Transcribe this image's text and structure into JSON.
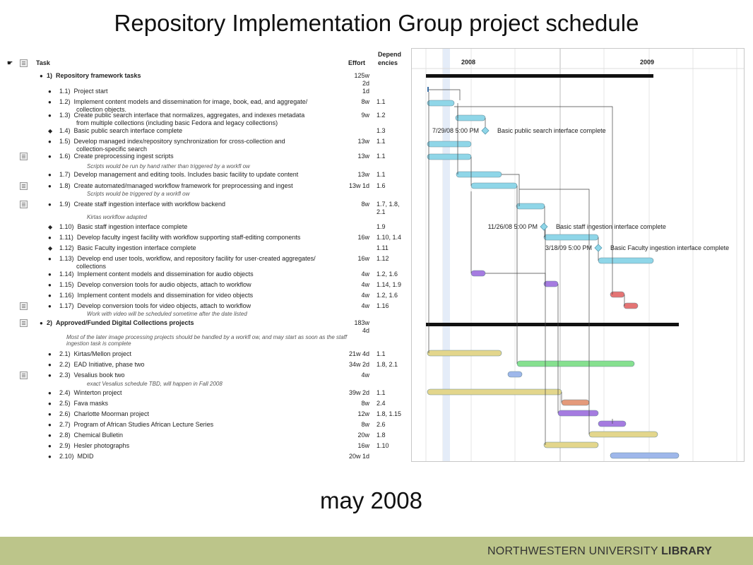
{
  "slide_title": "Repository Implementation Group project schedule",
  "subtitle": "may 2008",
  "footer": {
    "logo_left": "NORTHWESTERN UNIVERSITY",
    "logo_right": "LIBRARY",
    "bg_color": "#bcc58a"
  },
  "columns": {
    "task": "Task",
    "effort": "Effort",
    "deps_line1": "Depend",
    "deps_line2": "encies"
  },
  "years": [
    "2008",
    "2009"
  ],
  "rows": [
    {
      "num": "1)",
      "name": "Repository framework tasks",
      "effort": "125w\n2d",
      "deps": "",
      "bold": true
    },
    {
      "num": "1.1)",
      "name": "Project start",
      "effort": "1d",
      "deps": ""
    },
    {
      "num": "1.2)",
      "name": "Implement content models and dissemination for image, book, ead, and aggregate/",
      "name2": "collection objects.",
      "effort": "8w",
      "deps": "1.1"
    },
    {
      "num": "1.3)",
      "name": "Create public search interface that normalizes, aggregates, and indexes metadata",
      "name2": "from multiple collections (including basic Fedora and legacy collections)",
      "effort": "9w",
      "deps": "1.2"
    },
    {
      "num": "1.4)",
      "name": "Basic public search interface complete",
      "effort": "",
      "deps": "1.3"
    },
    {
      "num": "1.5)",
      "name": "Develop managed index/repository synchronization for cross-collection and",
      "name2": "collection-specific search",
      "effort": "13w",
      "deps": "1.1"
    },
    {
      "num": "1.6)",
      "name": "Create preprocessing ingest scripts",
      "effort": "13w",
      "deps": "1.1",
      "note": "Scripts would be run by hand rather than triggered by a workfl    ow"
    },
    {
      "num": "1.7)",
      "name": "Develop management and editing tools. Includes basic facility to update content",
      "effort": "13w",
      "deps": "1.1"
    },
    {
      "num": "1.8)",
      "name": "Create automated/managed workflow framework for preprocessing and ingest",
      "effort": "13w 1d",
      "deps": "1.6",
      "note": "Scripts would be triggered by a workfl    ow"
    },
    {
      "num": "1.9)",
      "name": "Create staff ingestion interface with workflow backend",
      "effort": "8w",
      "deps": "1.7, 1.8,\n2.1",
      "note": "Kirtas workflow adapted"
    },
    {
      "num": "1.10)",
      "name": "Basic staff ingestion interface complete",
      "effort": "",
      "deps": "1.9"
    },
    {
      "num": "1.11)",
      "name": "Develop faculty ingest facility with workflow supporting staff-editing components",
      "effort": "16w",
      "deps": "1.10, 1.4"
    },
    {
      "num": "1.12)",
      "name": "Basic Faculty ingestion interface complete",
      "effort": "",
      "deps": "1.11"
    },
    {
      "num": "1.13)",
      "name": "Develop end user tools, workflow, and repository facility for user-created aggregates/",
      "name2": "collections",
      "effort": "16w",
      "deps": "1.12"
    },
    {
      "num": "1.14)",
      "name": "Implement content models and dissemination for audio objects",
      "effort": "4w",
      "deps": "1.2, 1.6"
    },
    {
      "num": "1.15)",
      "name": "Develop conversion tools for audio objects, attach to workflow",
      "effort": "4w",
      "deps": "1.14, 1.9"
    },
    {
      "num": "1.16)",
      "name": "Implement content models and dissemination for video objects",
      "effort": "4w",
      "deps": "1.2, 1.6"
    },
    {
      "num": "1.17)",
      "name": "Develop conversion tools for video objects, attach to workflow",
      "effort": "4w",
      "deps": "1.16",
      "note": "Work with video will be scheduled sometime after the date listed"
    },
    {
      "num": "2)",
      "name": "Approved/Funded Digital Collections projects",
      "effort": "183w\n4d",
      "deps": "",
      "bold": true,
      "note": "Most of the later image processing projects should be handled by a workfl    ow, and may start as soon as the staff",
      "note2": "ingestion task is complete"
    },
    {
      "num": "2.1)",
      "name": "Kirtas/Mellon project",
      "effort": "21w 4d",
      "deps": "1.1"
    },
    {
      "num": "2.2)",
      "name": "EAD Initiative, phase two",
      "effort": "34w 2d",
      "deps": "1.8, 2.1"
    },
    {
      "num": "2.3)",
      "name": "Vesalius book two",
      "effort": "4w",
      "deps": "",
      "note": "exact Vesalius schedule TBD, will happen in Fall 2008"
    },
    {
      "num": "2.4)",
      "name": "Winterton project",
      "effort": "39w 2d",
      "deps": "1.1"
    },
    {
      "num": "2.5)",
      "name": "Fava masks",
      "effort": "8w",
      "deps": "2.4"
    },
    {
      "num": "2.6)",
      "name": "Charlotte Moorman project",
      "effort": "12w",
      "deps": "1.8, 1.15"
    },
    {
      "num": "2.7)",
      "name": "Program of African Studies African Lecture Series",
      "effort": "8w",
      "deps": "2.6"
    },
    {
      "num": "2.8)",
      "name": "Chemical Bulletin",
      "effort": "20w",
      "deps": "1.8"
    },
    {
      "num": "2.9)",
      "name": "Hesler photographs",
      "effort": "16w",
      "deps": "1.10"
    },
    {
      "num": "2.10)",
      "name": "MDID",
      "effort": "20w 1d",
      "deps": ""
    }
  ],
  "milestones": [
    {
      "date": "7/29/08 5:00 PM",
      "label": "Basic public search interface complete"
    },
    {
      "date": "11/26/08 5:00 PM",
      "label": "Basic staff ingestion interface complete"
    },
    {
      "date": "3/18/09 5:00 PM",
      "label": "Basic Faculty ingestion interface complete"
    }
  ],
  "colors": {
    "cyan": "#8fd6e8",
    "purple": "#a57be0",
    "red": "#e47474",
    "yellow": "#e3d68c",
    "green": "#86e08f",
    "blue": "#9eb7ea",
    "orange": "#e49a7a",
    "summary": "#111111"
  }
}
